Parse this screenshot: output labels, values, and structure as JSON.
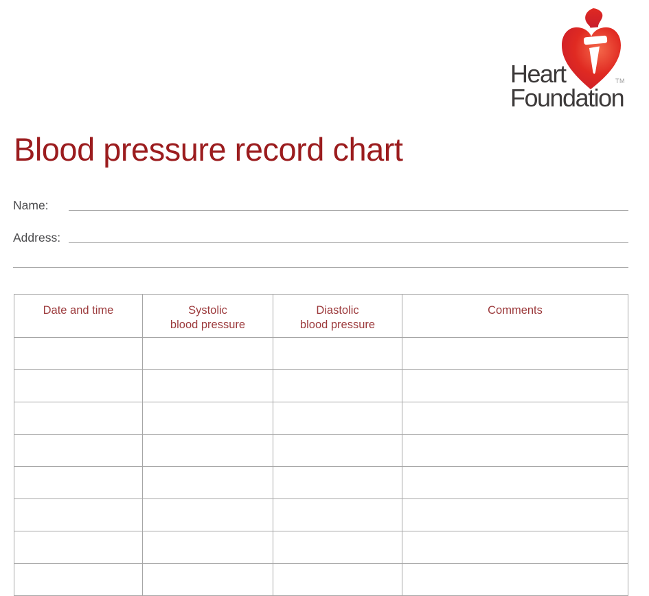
{
  "logo": {
    "line1": "Heart",
    "line2": "Foundation",
    "trademark": "TM",
    "text_color": "#3d3a3a",
    "heart_highlight": "#f4684a",
    "heart_red": "#e02a22",
    "heart_deep": "#c81c2b"
  },
  "page": {
    "title": "Blood pressure record chart",
    "title_color": "#9b1c1e",
    "background_color": "#ffffff"
  },
  "form": {
    "name_label": "Name:",
    "name_value": "",
    "address_label": "Address:",
    "address_value": "",
    "address_value_line2": "",
    "label_color": "#4b4b4d",
    "line_color": "#a9a9a9"
  },
  "table": {
    "header_text_color": "#9c3a3c",
    "border_color": "#a6a6a6",
    "columns": [
      "Date and time",
      "Systolic\nblood pressure",
      "Diastolic\nblood pressure",
      "Comments"
    ],
    "rows": [
      [
        "",
        "",
        "",
        ""
      ],
      [
        "",
        "",
        "",
        ""
      ],
      [
        "",
        "",
        "",
        ""
      ],
      [
        "",
        "",
        "",
        ""
      ],
      [
        "",
        "",
        "",
        ""
      ],
      [
        "",
        "",
        "",
        ""
      ],
      [
        "",
        "",
        "",
        ""
      ],
      [
        "",
        "",
        "",
        ""
      ]
    ]
  }
}
